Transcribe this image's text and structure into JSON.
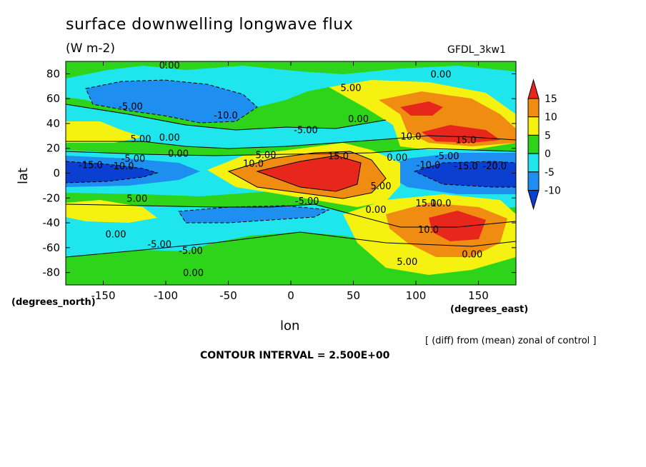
{
  "chart_data": {
    "type": "heatmap",
    "title": "surface downwelling longwave flux",
    "units": "(W m-2)",
    "model": "GFDL_3kw1",
    "xlabel": "lon",
    "ylabel": "lat",
    "x_unit": "(degrees_east)",
    "y_unit": "(degrees_north)",
    "xlim": [
      -180,
      180
    ],
    "ylim": [
      -90,
      90
    ],
    "x_ticks": [
      -150,
      -100,
      -50,
      0,
      50,
      100,
      150
    ],
    "y_ticks": [
      80,
      60,
      40,
      20,
      0,
      -20,
      -40,
      -60,
      -80
    ],
    "note": "[ (diff) from (mean) zonal of control ]",
    "contour_interval": "CONTOUR INTERVAL = 2.500E+00",
    "colorbar": {
      "ticks": [
        15,
        10,
        5,
        0,
        -5,
        -10
      ],
      "colors": [
        "#e8271c",
        "#f08c12",
        "#f5f212",
        "#2ed41a",
        "#1ee6ec",
        "#1e8ef0",
        "#0a3fd2"
      ]
    },
    "contour_labels": [
      {
        "text": "0.00",
        "lon": -97,
        "lat": 87
      },
      {
        "text": "0.00",
        "lon": 120,
        "lat": 80
      },
      {
        "text": "5.00",
        "lon": 48,
        "lat": 69
      },
      {
        "text": "-5.00",
        "lon": -128,
        "lat": 54
      },
      {
        "text": "-10.0",
        "lon": -52,
        "lat": 47
      },
      {
        "text": "0.00",
        "lon": 54,
        "lat": 44
      },
      {
        "text": "-5.00",
        "lon": 12,
        "lat": 35
      },
      {
        "text": "5.00",
        "lon": -120,
        "lat": 28
      },
      {
        "text": "0.00",
        "lon": -97,
        "lat": 29
      },
      {
        "text": "10.0",
        "lon": 96,
        "lat": 30
      },
      {
        "text": "15.0",
        "lon": 140,
        "lat": 27
      },
      {
        "text": "-5.00",
        "lon": -126,
        "lat": 12
      },
      {
        "text": "0.00",
        "lon": -90,
        "lat": 16
      },
      {
        "text": "5.00",
        "lon": -20,
        "lat": 15
      },
      {
        "text": "15.0",
        "lon": 38,
        "lat": 14
      },
      {
        "text": "0.00",
        "lon": 85,
        "lat": 13
      },
      {
        "text": "-5.00",
        "lon": 125,
        "lat": 14
      },
      {
        "text": "10.0",
        "lon": -30,
        "lat": 8
      },
      {
        "text": "-15.0",
        "lon": -160,
        "lat": 7
      },
      {
        "text": "-10.0",
        "lon": -135,
        "lat": 6
      },
      {
        "text": "-10.0",
        "lon": 110,
        "lat": 7
      },
      {
        "text": "-15.0",
        "lon": 140,
        "lat": 6
      },
      {
        "text": "-20.0",
        "lon": 163,
        "lat": 6
      },
      {
        "text": "5.00",
        "lon": 72,
        "lat": -10
      },
      {
        "text": "5.00",
        "lon": -123,
        "lat": -20
      },
      {
        "text": "-5.00",
        "lon": 13,
        "lat": -22
      },
      {
        "text": "0.00",
        "lon": 68,
        "lat": -29
      },
      {
        "text": "15.0",
        "lon": 108,
        "lat": -24
      },
      {
        "text": "10.0",
        "lon": 120,
        "lat": -24
      },
      {
        "text": "0.00",
        "lon": -140,
        "lat": -49
      },
      {
        "text": "10.0",
        "lon": 110,
        "lat": -45
      },
      {
        "text": "-5.00",
        "lon": -105,
        "lat": -57
      },
      {
        "text": "-5.00",
        "lon": -80,
        "lat": -62
      },
      {
        "text": "0.00",
        "lon": 145,
        "lat": -65
      },
      {
        "text": "5.00",
        "lon": 93,
        "lat": -71
      },
      {
        "text": "0.00",
        "lon": -78,
        "lat": -80
      }
    ]
  }
}
